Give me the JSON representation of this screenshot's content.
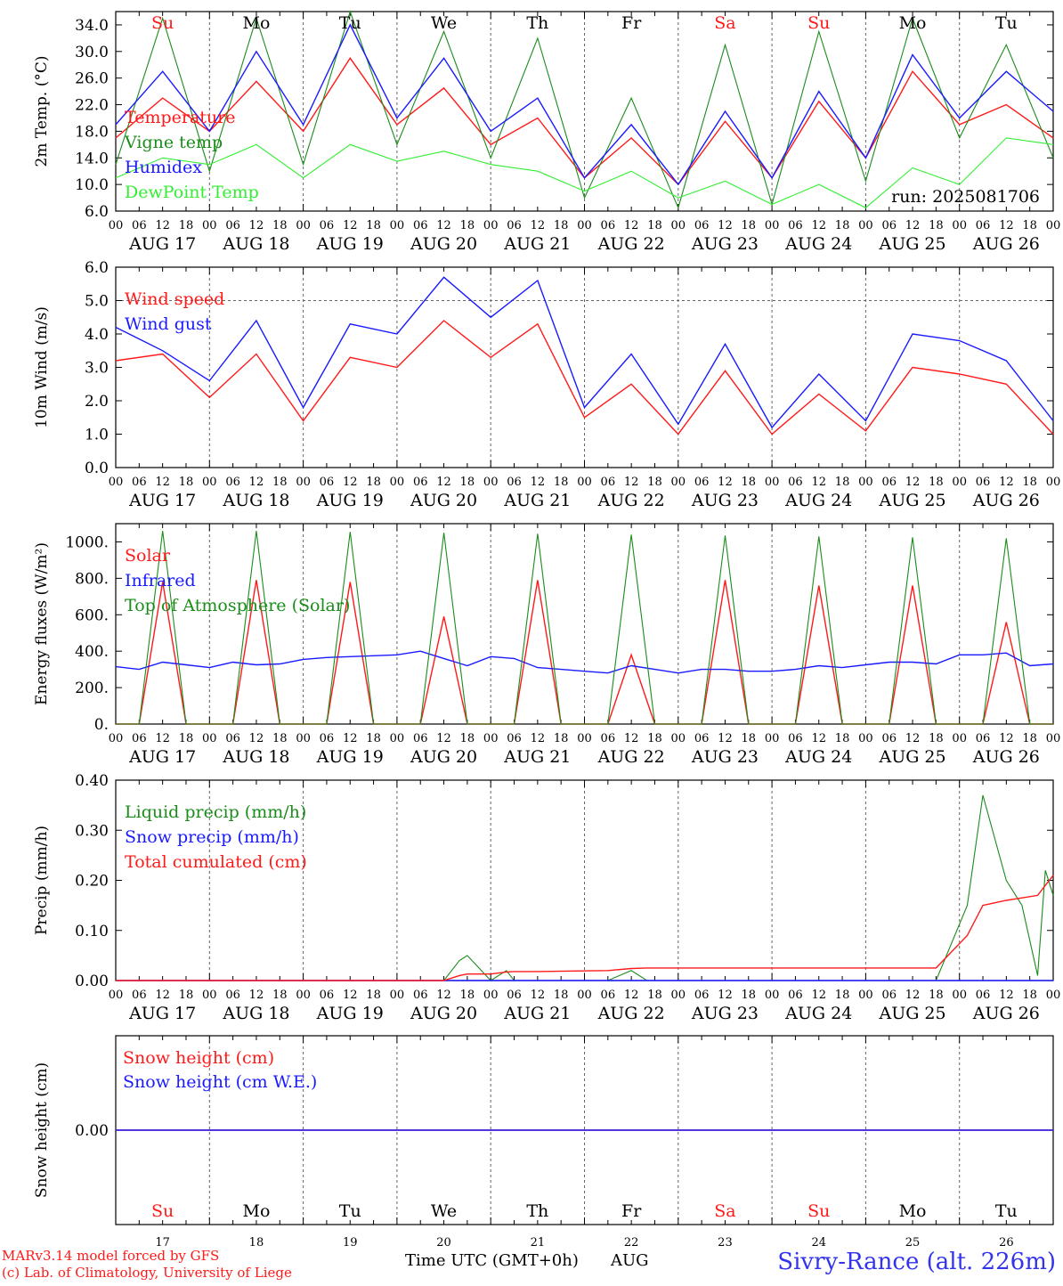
{
  "colors": {
    "red": "#ff1a1a",
    "darkgreen": "#1a8c1a",
    "lightgreen": "#33ee33",
    "blue": "#1a1aff",
    "black": "#000000",
    "grid": "#666666"
  },
  "day_names": [
    "Su",
    "Mo",
    "Tu",
    "We",
    "Th",
    "Fr",
    "Sa",
    "Su",
    "Mo",
    "Tu"
  ],
  "day_name_colors": [
    "red",
    "black",
    "black",
    "black",
    "black",
    "black",
    "red",
    "red",
    "black",
    "black"
  ],
  "date_labels": [
    "AUG 17",
    "AUG 18",
    "AUG 19",
    "AUG 20",
    "AUG 21",
    "AUG 22",
    "AUG 23",
    "AUG 24",
    "AUG 25",
    "AUG 26"
  ],
  "hour_ticks": [
    "00",
    "06",
    "12",
    "18"
  ],
  "hour_end": "00",
  "day_numbers": [
    "17",
    "18",
    "19",
    "20",
    "21",
    "22",
    "23",
    "24",
    "25",
    "26"
  ],
  "run_label": "run: 2025081706",
  "footer": {
    "credit_line1": "MARv3.14 model forced by GFS",
    "credit_line2": "(c) Lab. of Climatology, University of Liege",
    "time_axis": "Time UTC (GMT+0h)",
    "month": "AUG",
    "station": "Sivry-Rance (alt. 226m)"
  },
  "chart_data": [
    {
      "type": "line",
      "ylabel": "2m Temp. (°C)",
      "ylim": [
        6,
        36
      ],
      "yticks": [
        "6.0",
        "10.0",
        "14.0",
        "18.0",
        "22.0",
        "26.0",
        "30.0",
        "34.0"
      ],
      "x_hours": [
        0,
        12,
        24,
        36,
        48,
        60,
        72,
        84,
        96,
        108,
        120,
        132,
        144,
        156,
        168,
        180,
        192,
        204,
        216,
        228,
        240
      ],
      "series": [
        {
          "name": "Temperature",
          "color": "red",
          "values": [
            17,
            23,
            18,
            25.5,
            18,
            29,
            19,
            24.5,
            16,
            20,
            11,
            17,
            10,
            19.5,
            11,
            22.5,
            14,
            27,
            19,
            22,
            17
          ]
        },
        {
          "name": "Vigne temp",
          "color": "darkgreen",
          "values": [
            13,
            35,
            12,
            35,
            13,
            36,
            16,
            33,
            14,
            32,
            8,
            23,
            6.5,
            31,
            7,
            33,
            10.5,
            35,
            17,
            31,
            14
          ]
        },
        {
          "name": "Humidex",
          "color": "blue",
          "values": [
            19,
            27,
            18,
            30,
            19,
            34,
            20,
            29,
            18,
            23,
            11,
            19,
            10,
            21,
            11,
            24,
            14,
            29.5,
            20,
            27,
            21
          ]
        },
        {
          "name": "DewPoint Temp",
          "color": "lightgreen",
          "values": [
            11,
            14,
            13,
            16,
            11,
            16,
            13.5,
            15,
            13,
            12,
            9,
            12,
            8,
            10.5,
            7,
            10,
            6.5,
            12.5,
            10,
            17,
            16
          ]
        }
      ]
    },
    {
      "type": "line",
      "ylabel": "10m Wind (m/s)",
      "ylim": [
        0,
        6
      ],
      "yticks": [
        "0.0",
        "1.0",
        "2.0",
        "3.0",
        "4.0",
        "5.0",
        "6.0"
      ],
      "x_hours": [
        0,
        12,
        24,
        36,
        48,
        60,
        72,
        84,
        96,
        108,
        120,
        132,
        144,
        156,
        168,
        180,
        192,
        204,
        216,
        228,
        240
      ],
      "series": [
        {
          "name": "Wind speed",
          "color": "red",
          "values": [
            3.2,
            3.4,
            2.1,
            3.4,
            1.4,
            3.3,
            3.0,
            4.4,
            3.3,
            4.3,
            1.5,
            2.5,
            1.0,
            2.9,
            1.0,
            2.2,
            1.1,
            3.0,
            2.8,
            2.5,
            1.0
          ]
        },
        {
          "name": "Wind gust",
          "color": "blue",
          "values": [
            4.2,
            3.5,
            2.6,
            4.4,
            1.8,
            4.3,
            4.0,
            5.7,
            4.5,
            5.6,
            1.8,
            3.4,
            1.3,
            3.7,
            1.2,
            2.8,
            1.4,
            4.0,
            3.8,
            3.2,
            1.4
          ]
        }
      ]
    },
    {
      "type": "line",
      "ylabel": "Energy fluxes (W/m²)",
      "ylim": [
        0,
        1100
      ],
      "yticks": [
        "0.",
        "200.",
        "400.",
        "600.",
        "800.",
        "1000."
      ],
      "x_hours": [
        0,
        6,
        12,
        18,
        24,
        30,
        36,
        42,
        48,
        54,
        60,
        66,
        72,
        78,
        84,
        90,
        96,
        102,
        108,
        114,
        120,
        126,
        132,
        138,
        144,
        150,
        156,
        162,
        168,
        174,
        180,
        186,
        192,
        198,
        204,
        210,
        216,
        222,
        228,
        234,
        240
      ],
      "series": [
        {
          "name": "Solar",
          "color": "red",
          "values": [
            0,
            0,
            780,
            0,
            0,
            0,
            790,
            0,
            0,
            0,
            780,
            0,
            0,
            0,
            590,
            0,
            0,
            0,
            790,
            0,
            0,
            0,
            380,
            0,
            0,
            0,
            790,
            0,
            0,
            0,
            760,
            0,
            0,
            0,
            760,
            0,
            0,
            0,
            560,
            0,
            0
          ]
        },
        {
          "name": "Infrared",
          "color": "blue",
          "values": [
            315,
            300,
            340,
            325,
            310,
            340,
            325,
            330,
            355,
            365,
            370,
            375,
            380,
            400,
            360,
            320,
            370,
            360,
            310,
            300,
            290,
            280,
            320,
            300,
            280,
            300,
            300,
            290,
            290,
            300,
            320,
            310,
            325,
            340,
            340,
            330,
            380,
            380,
            390,
            320,
            330
          ]
        },
        {
          "name": "Top of Atmosphere (Solar)",
          "color": "darkgreen",
          "values": [
            0,
            0,
            1060,
            0,
            0,
            0,
            1060,
            0,
            0,
            0,
            1055,
            0,
            0,
            0,
            1050,
            0,
            0,
            0,
            1045,
            0,
            0,
            0,
            1040,
            0,
            0,
            0,
            1035,
            0,
            0,
            0,
            1030,
            0,
            0,
            0,
            1025,
            0,
            0,
            0,
            1020,
            0,
            0
          ]
        }
      ]
    },
    {
      "type": "line",
      "ylabel": "Precip (mm/h)",
      "ylim": [
        0,
        0.4
      ],
      "yticks": [
        "0.00",
        "0.10",
        "0.20",
        "0.30",
        "0.40"
      ],
      "x_hours": [
        0,
        72,
        84,
        88,
        90,
        96,
        100,
        102,
        108,
        126,
        132,
        136,
        210,
        218,
        222,
        228,
        232,
        236,
        238,
        240
      ],
      "series": [
        {
          "name": "Liquid precip (mm/h)",
          "color": "darkgreen",
          "values": [
            0,
            0,
            0,
            0.04,
            0.05,
            0,
            0.02,
            0,
            0,
            0,
            0.02,
            0,
            0,
            0.15,
            0.37,
            0.2,
            0.15,
            0.01,
            0.22,
            0.17
          ]
        },
        {
          "name": "Snow precip (mm/h)",
          "color": "blue",
          "values": [
            0,
            0,
            0,
            0,
            0,
            0,
            0,
            0,
            0,
            0,
            0,
            0,
            0,
            0,
            0,
            0,
            0,
            0,
            0,
            0
          ]
        },
        {
          "name": "Total cumulated (cm)",
          "color": "red",
          "values": [
            0,
            0,
            0,
            0.01,
            0.013,
            0.013,
            0.017,
            0.018,
            0.018,
            0.02,
            0.024,
            0.025,
            0.025,
            0.09,
            0.15,
            0.16,
            0.165,
            0.17,
            0.19,
            0.21
          ]
        }
      ]
    },
    {
      "type": "line",
      "ylabel": "Snow height (cm)",
      "ylim": [
        -1,
        1
      ],
      "yticks": [
        "0.00"
      ],
      "x_hours": [
        0,
        240
      ],
      "series": [
        {
          "name": "Snow height (cm)",
          "color": "red",
          "values": [
            0,
            0
          ]
        },
        {
          "name": "Snow height (cm W.E.)",
          "color": "blue",
          "values": [
            0,
            0
          ]
        }
      ]
    }
  ]
}
